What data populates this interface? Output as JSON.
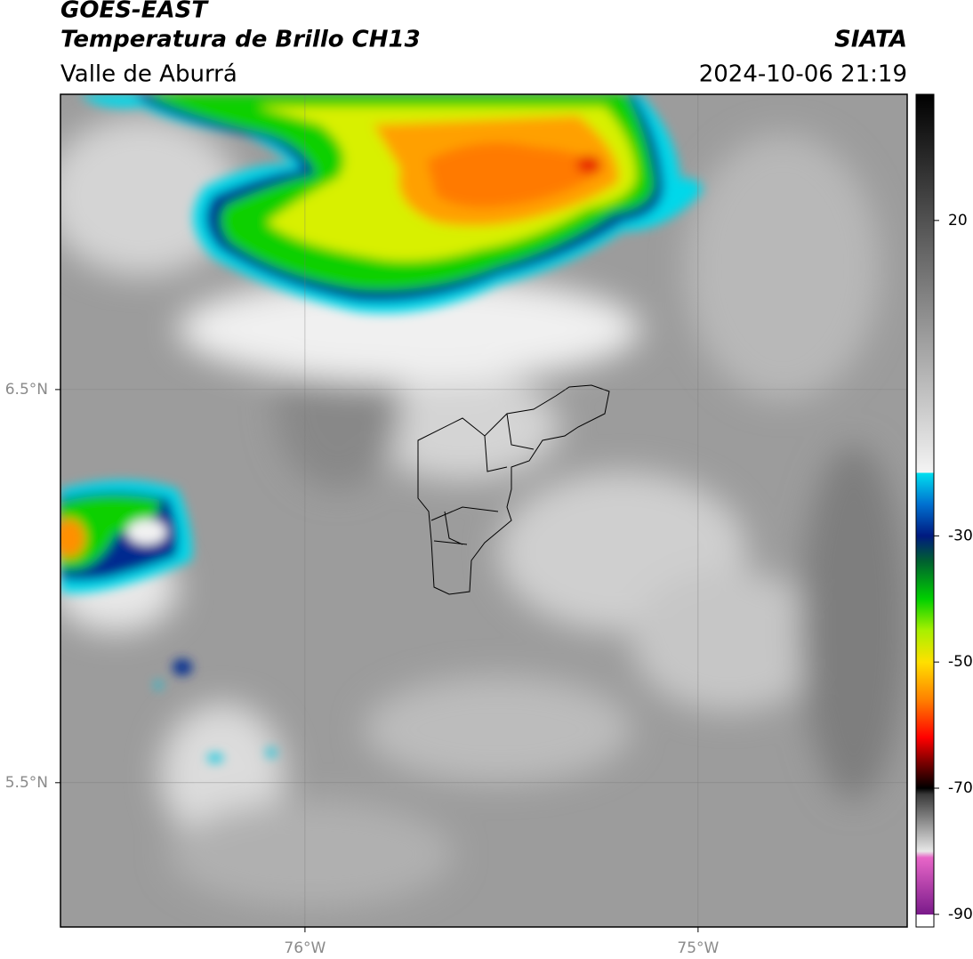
{
  "chart_data": {
    "type": "map",
    "title": "GOES-EAST",
    "subtitle": "Temperatura de Brillo CH13",
    "region": "Valle de Aburrá",
    "source": "SIATA",
    "datetime": "2024-10-06 21:19",
    "xlim": [
      -76.622,
      -74.468
    ],
    "ylim": [
      5.133,
      7.251
    ],
    "xticks": [
      {
        "value": -76,
        "label": "76°W"
      },
      {
        "value": -75,
        "label": "75°W"
      }
    ],
    "yticks": [
      {
        "value": 6.5,
        "label": "6.5°N"
      },
      {
        "value": 5.5,
        "label": "5.5°N"
      }
    ],
    "grid": true,
    "colorbar": {
      "lim": [
        -92,
        40
      ],
      "ticks": [
        20,
        -30,
        -50,
        -70,
        -90
      ],
      "stops": [
        {
          "value": -92,
          "color": "#ffffff"
        },
        {
          "value": -90,
          "color": "#ffffff"
        },
        {
          "value": -90,
          "color": "#7a1a8a"
        },
        {
          "value": -81,
          "color": "#e866c8"
        },
        {
          "value": -80,
          "color": "#e8e8e8"
        },
        {
          "value": -71,
          "color": "#3a3a3a"
        },
        {
          "value": -70,
          "color": "#000000"
        },
        {
          "value": -66,
          "color": "#7a0000"
        },
        {
          "value": -62,
          "color": "#ff0000"
        },
        {
          "value": -56,
          "color": "#ff8000"
        },
        {
          "value": -50,
          "color": "#ffe000"
        },
        {
          "value": -45,
          "color": "#a8f000"
        },
        {
          "value": -40,
          "color": "#00d000"
        },
        {
          "value": -34,
          "color": "#006030"
        },
        {
          "value": -30,
          "color": "#001a80"
        },
        {
          "value": -25,
          "color": "#0070d0"
        },
        {
          "value": -20,
          "color": "#00e0f0"
        },
        {
          "value": -20,
          "color": "#f4f4f4"
        },
        {
          "value": 40,
          "color": "#000000"
        }
      ]
    }
  }
}
